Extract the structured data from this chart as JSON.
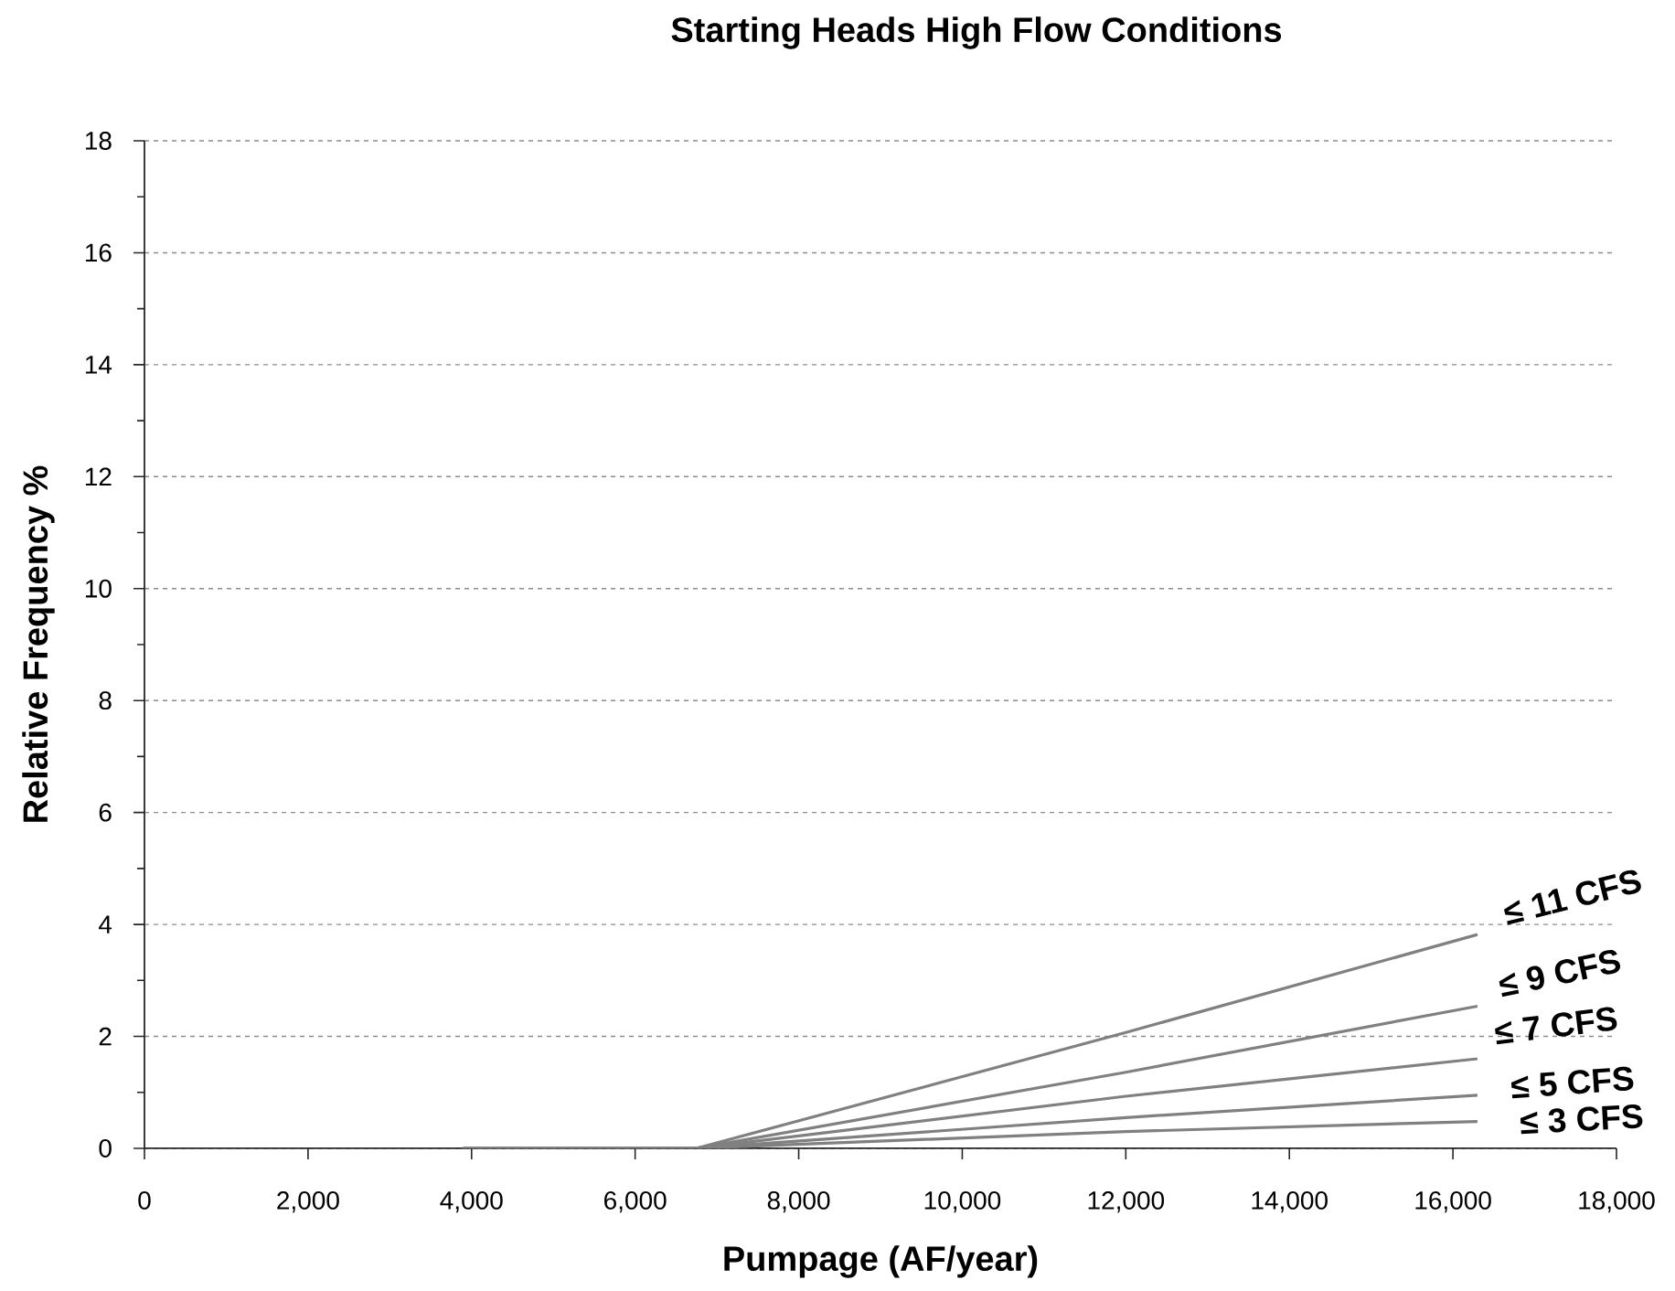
{
  "chart_data": {
    "type": "line",
    "title": "Starting Heads High Flow Conditions",
    "xlabel": "Pumpage (AF/year)",
    "ylabel": "Relative Frequency %",
    "x": [
      3900,
      6750,
      12000,
      16300
    ],
    "series": [
      {
        "name": "≤ 11 CFS",
        "color": "#808080",
        "values": [
          0,
          0,
          2.07,
          3.82
        ]
      },
      {
        "name": "≤ 9 CFS",
        "color": "#808080",
        "values": [
          0,
          0,
          1.36,
          2.54
        ]
      },
      {
        "name": "≤ 7 CFS",
        "color": "#808080",
        "values": [
          0,
          0,
          0.93,
          1.6
        ]
      },
      {
        "name": "≤ 5 CFS",
        "color": "#808080",
        "values": [
          0,
          0,
          0.55,
          0.95
        ]
      },
      {
        "name": "≤ 3 CFS",
        "color": "#808080",
        "values": [
          0,
          0,
          0.3,
          0.48
        ]
      }
    ],
    "xlim": [
      0,
      18000
    ],
    "ylim": [
      0,
      18
    ],
    "xticks": [
      0,
      {
        "value": 2000,
        "label": "2,000"
      },
      {
        "value": 4000,
        "label": "4,000"
      },
      {
        "value": 6000,
        "label": "6,000"
      },
      {
        "value": 8000,
        "label": "8,000"
      },
      {
        "value": 10000,
        "label": "10,000"
      },
      {
        "value": 12000,
        "label": "12,000"
      },
      {
        "value": 14000,
        "label": "14,000"
      },
      {
        "value": 16000,
        "label": "16,000"
      },
      {
        "value": 18000,
        "label": "18,000"
      }
    ],
    "yticks": [
      0,
      {
        "value": 1,
        "label": null
      },
      2,
      {
        "value": 3,
        "label": null
      },
      4,
      {
        "value": 5,
        "label": null
      },
      6,
      {
        "value": 7,
        "label": null
      },
      8,
      {
        "value": 9,
        "label": null
      },
      10,
      {
        "value": 11,
        "label": null
      },
      12,
      {
        "value": 13,
        "label": null
      },
      14,
      {
        "value": 15,
        "label": null
      },
      16,
      {
        "value": 17,
        "label": null
      },
      18
    ],
    "grid": "y",
    "marker": "none",
    "line_style": "solid"
  }
}
